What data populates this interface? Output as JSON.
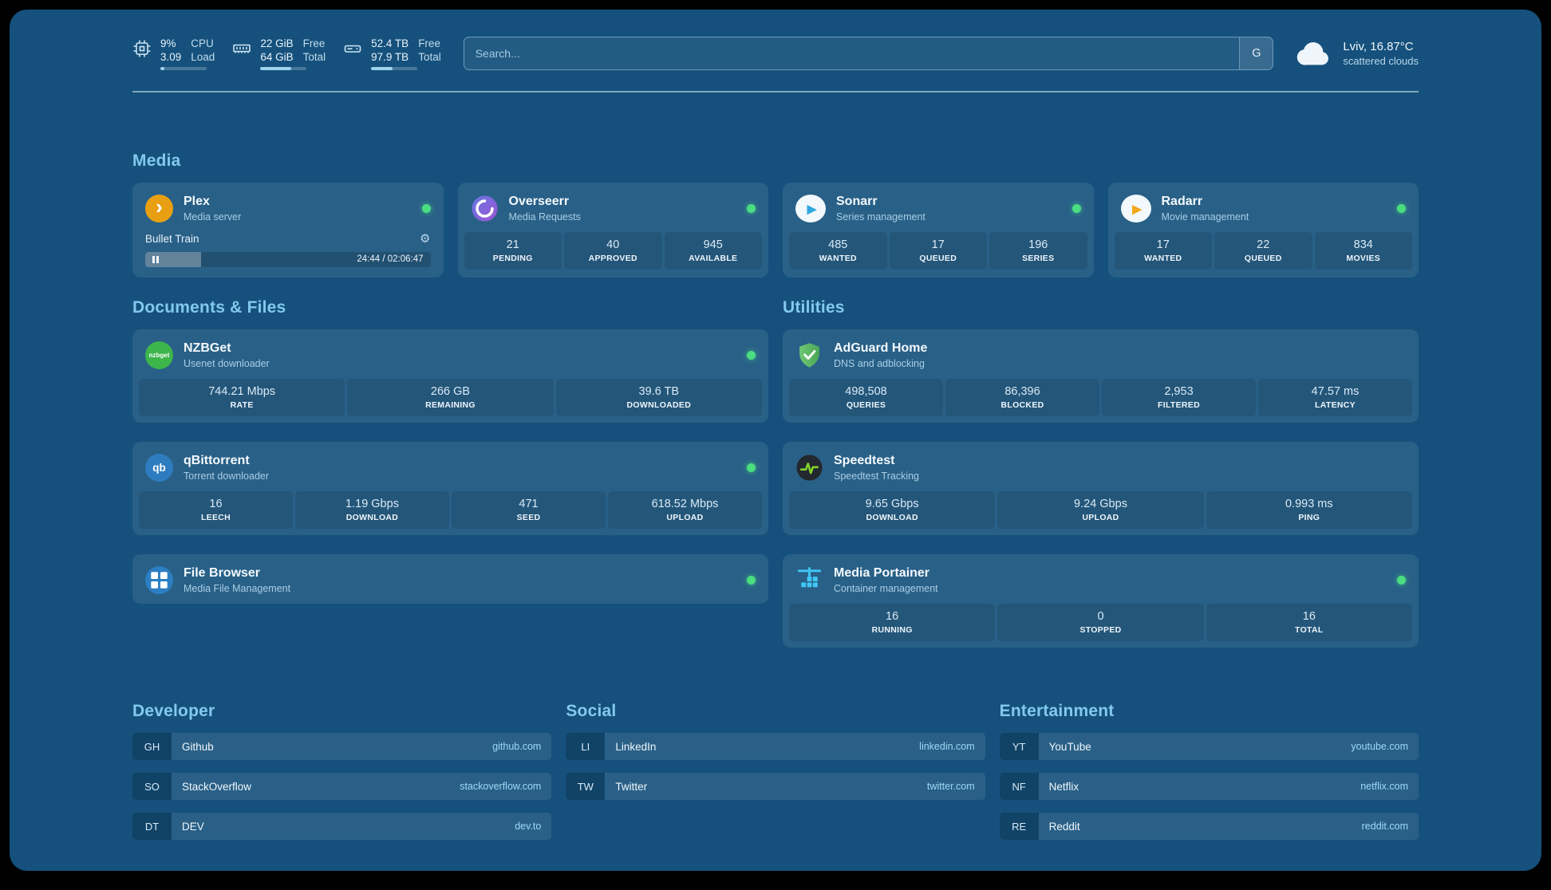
{
  "colors": {
    "background": "#15517c",
    "accent": "#83c9ee",
    "status_online": "#4ade80"
  },
  "icons": {
    "gear": "⚙"
  },
  "header": {
    "resources": [
      {
        "name": "cpu",
        "rows": [
          {
            "value": "9%",
            "label": "CPU"
          },
          {
            "value": "3.09",
            "label": "Load"
          }
        ],
        "bar_pct": 9
      },
      {
        "name": "memory",
        "rows": [
          {
            "value": "22 GiB",
            "label": "Free"
          },
          {
            "value": "64 GiB",
            "label": "Total"
          }
        ],
        "bar_pct": 66
      },
      {
        "name": "disk",
        "rows": [
          {
            "value": "52.4 TB",
            "label": "Free"
          },
          {
            "value": "97.9 TB",
            "label": "Total"
          }
        ],
        "bar_pct": 46
      }
    ],
    "search": {
      "placeholder": "Search...",
      "provider_label": "G"
    },
    "weather": {
      "location": "Lviv, 16.87°C",
      "condition": "scattered clouds"
    }
  },
  "sections": {
    "media": {
      "title": "Media",
      "plex": {
        "name": "Plex",
        "subtitle": "Media server",
        "icon_text": "›",
        "now_playing": {
          "title": "Bullet Train",
          "time": "24:44 / 02:06:47",
          "progress_pct": 19.5
        }
      },
      "overseerr": {
        "name": "Overseerr",
        "subtitle": "Media Requests",
        "stats": [
          {
            "value": "21",
            "label": "PENDING"
          },
          {
            "value": "40",
            "label": "APPROVED"
          },
          {
            "value": "945",
            "label": "AVAILABLE"
          }
        ]
      },
      "sonarr": {
        "name": "Sonarr",
        "subtitle": "Series management",
        "icon_text": "▶",
        "stats": [
          {
            "value": "485",
            "label": "WANTED"
          },
          {
            "value": "17",
            "label": "QUEUED"
          },
          {
            "value": "196",
            "label": "SERIES"
          }
        ]
      },
      "radarr": {
        "name": "Radarr",
        "subtitle": "Movie management",
        "icon_text": "▶",
        "stats": [
          {
            "value": "17",
            "label": "WANTED"
          },
          {
            "value": "22",
            "label": "QUEUED"
          },
          {
            "value": "834",
            "label": "MOVIES"
          }
        ]
      }
    },
    "documents": {
      "title": "Documents & Files",
      "nzbget": {
        "name": "NZBGet",
        "subtitle": "Usenet downloader",
        "icon_text": "nzbget",
        "stats": [
          {
            "value": "744.21 Mbps",
            "label": "RATE"
          },
          {
            "value": "266 GB",
            "label": "REMAINING"
          },
          {
            "value": "39.6 TB",
            "label": "DOWNLOADED"
          }
        ]
      },
      "qbittorrent": {
        "name": "qBittorrent",
        "subtitle": "Torrent downloader",
        "icon_text": "qb",
        "stats": [
          {
            "value": "16",
            "label": "LEECH"
          },
          {
            "value": "1.19 Gbps",
            "label": "DOWNLOAD"
          },
          {
            "value": "471",
            "label": "SEED"
          },
          {
            "value": "618.52 Mbps",
            "label": "UPLOAD"
          }
        ]
      },
      "filebrowser": {
        "name": "File Browser",
        "subtitle": "Media File Management"
      }
    },
    "utilities": {
      "title": "Utilities",
      "adguard": {
        "name": "AdGuard Home",
        "subtitle": "DNS and adblocking",
        "stats": [
          {
            "value": "498,508",
            "label": "QUERIES"
          },
          {
            "value": "86,396",
            "label": "BLOCKED"
          },
          {
            "value": "2,953",
            "label": "FILTERED"
          },
          {
            "value": "47.57 ms",
            "label": "LATENCY"
          }
        ]
      },
      "speedtest": {
        "name": "Speedtest",
        "subtitle": "Speedtest Tracking",
        "stats": [
          {
            "value": "9.65 Gbps",
            "label": "DOWNLOAD"
          },
          {
            "value": "9.24 Gbps",
            "label": "UPLOAD"
          },
          {
            "value": "0.993 ms",
            "label": "PING"
          }
        ]
      },
      "portainer": {
        "name": "Media Portainer",
        "subtitle": "Container management",
        "stats": [
          {
            "value": "16",
            "label": "RUNNING"
          },
          {
            "value": "0",
            "label": "STOPPED"
          },
          {
            "value": "16",
            "label": "TOTAL"
          }
        ]
      }
    }
  },
  "bookmarks": {
    "groups": [
      {
        "title": "Developer",
        "items": [
          {
            "abbr": "GH",
            "name": "Github",
            "domain": "github.com"
          },
          {
            "abbr": "SO",
            "name": "StackOverflow",
            "domain": "stackoverflow.com"
          },
          {
            "abbr": "DT",
            "name": "DEV",
            "domain": "dev.to"
          }
        ]
      },
      {
        "title": "Social",
        "items": [
          {
            "abbr": "LI",
            "name": "LinkedIn",
            "domain": "linkedin.com"
          },
          {
            "abbr": "TW",
            "name": "Twitter",
            "domain": "twitter.com"
          }
        ]
      },
      {
        "title": "Entertainment",
        "items": [
          {
            "abbr": "YT",
            "name": "YouTube",
            "domain": "youtube.com"
          },
          {
            "abbr": "NF",
            "name": "Netflix",
            "domain": "netflix.com"
          },
          {
            "abbr": "RE",
            "name": "Reddit",
            "domain": "reddit.com"
          }
        ]
      }
    ]
  }
}
